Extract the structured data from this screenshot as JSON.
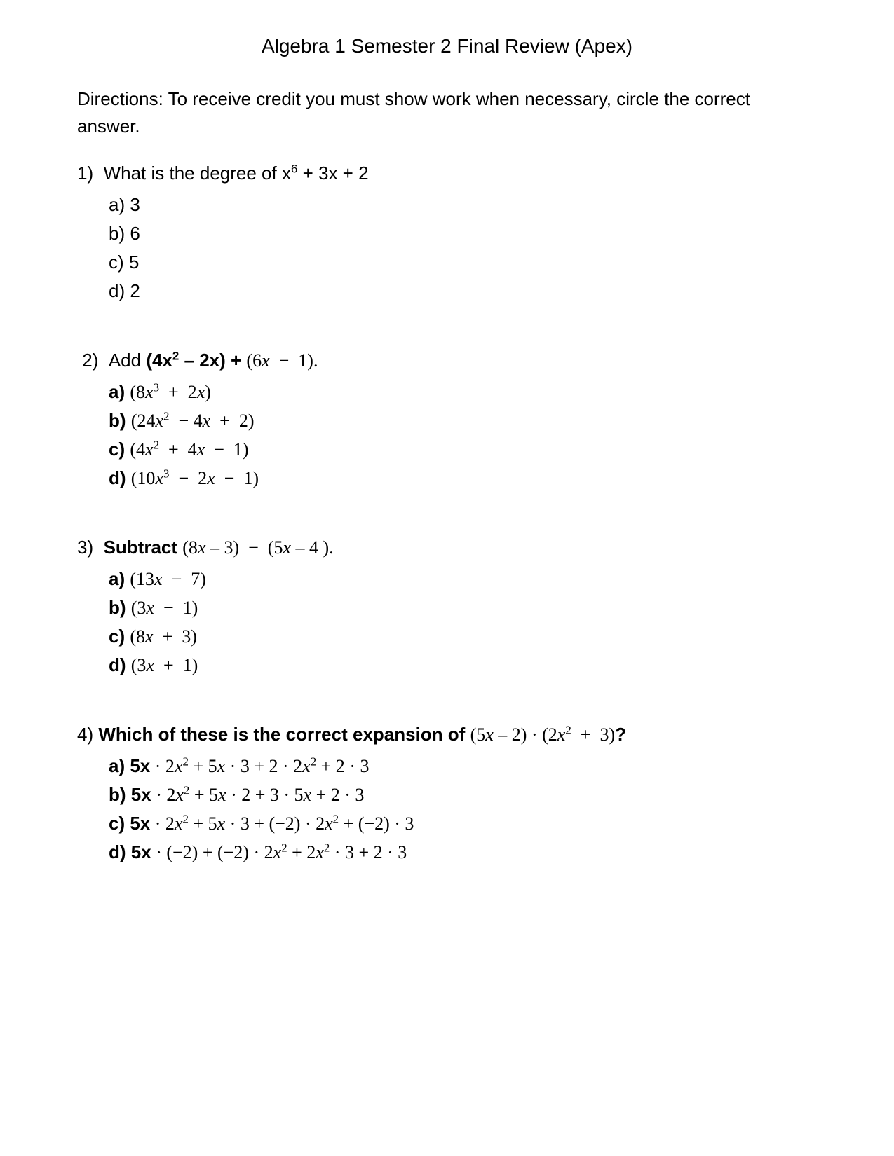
{
  "title": "Algebra 1 Semester 2 Final Review (Apex)",
  "directions": "Directions:  To receive credit you must show work when necessary, circle the correct answer.",
  "font_family_body": "Comic Sans MS",
  "font_family_math": "Cambria Math",
  "text_color": "#000000",
  "background_color": "#ffffff",
  "title_fontsize": 28,
  "body_fontsize": 26,
  "questions": [
    {
      "number": "1)",
      "stem_prefix": "What is the degree of ",
      "stem_math": "x⁶ + 3x + 2",
      "options": {
        "a": "3",
        "b": "6",
        "c": "5",
        "d": "2"
      }
    },
    {
      "number": "2)",
      "stem_prefix": "Add ",
      "stem_bold_math": "(4x² – 2x) + ",
      "stem_math_tail": "(6𝑥 − 1).",
      "options_math": {
        "a": "(8𝑥³ + 2𝑥)",
        "b": "(24𝑥² − 4𝑥 + 2)",
        "c": "(4𝑥² + 4𝑥 − 1)",
        "d": "(10𝑥³ − 2𝑥 − 1)"
      }
    },
    {
      "number": "3)",
      "stem_prefix": "Subtract ",
      "stem_math": "(8𝑥 – 3)  −  (5𝑥 – 4 ).",
      "options_math": {
        "a": "(13𝑥 − 7)",
        "b": "(3𝑥 − 1)",
        "c": "(8𝑥 + 3)",
        "d": "(3𝑥 + 1)"
      }
    },
    {
      "number": "4)",
      "stem_prefix": "Which of these is the correct expansion of ",
      "stem_math": "(5𝑥 – 2) · (2𝑥² + 3)",
      "stem_suffix": "?",
      "options_mixed": {
        "a": {
          "bold": "5x",
          "rest": " · 2𝑥² + 5𝑥 · 3 + 2 · 2𝑥² + 2 · 3"
        },
        "b": {
          "bold": "5x",
          "rest": " · 2𝑥² + 5𝑥 · 2 + 3 · 5𝑥 + 2 · 3"
        },
        "c": {
          "bold": "5x",
          "rest": " · 2𝑥² + 5𝑥 · 3 + (−2) · 2𝑥² + (−2) · 3"
        },
        "d": {
          "bold": "5x",
          "rest": " · (−2) + (−2) · 2𝑥² + 2𝑥² · 3 + 2 · 3"
        }
      }
    }
  ]
}
